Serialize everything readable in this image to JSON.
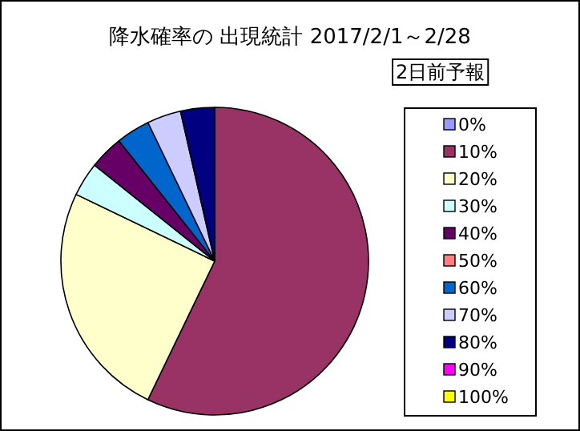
{
  "chart_data": {
    "type": "pie",
    "title": "降水確率の 出現統計 2017/2/1～2/28",
    "legend_title": "2日前予報",
    "legend": "right",
    "categories": [
      "0%",
      "10%",
      "20%",
      "30%",
      "40%",
      "50%",
      "60%",
      "70%",
      "80%",
      "90%",
      "100%"
    ],
    "values": [
      0,
      57.15,
      25,
      3.57,
      3.57,
      0,
      3.57,
      3.57,
      3.57,
      0,
      0
    ],
    "colors": [
      "#9999ff",
      "#993366",
      "#ffffcc",
      "#ccffff",
      "#660066",
      "#ff8080",
      "#0066cc",
      "#ccccff",
      "#000080",
      "#ff00ff",
      "#ffff00"
    ]
  }
}
